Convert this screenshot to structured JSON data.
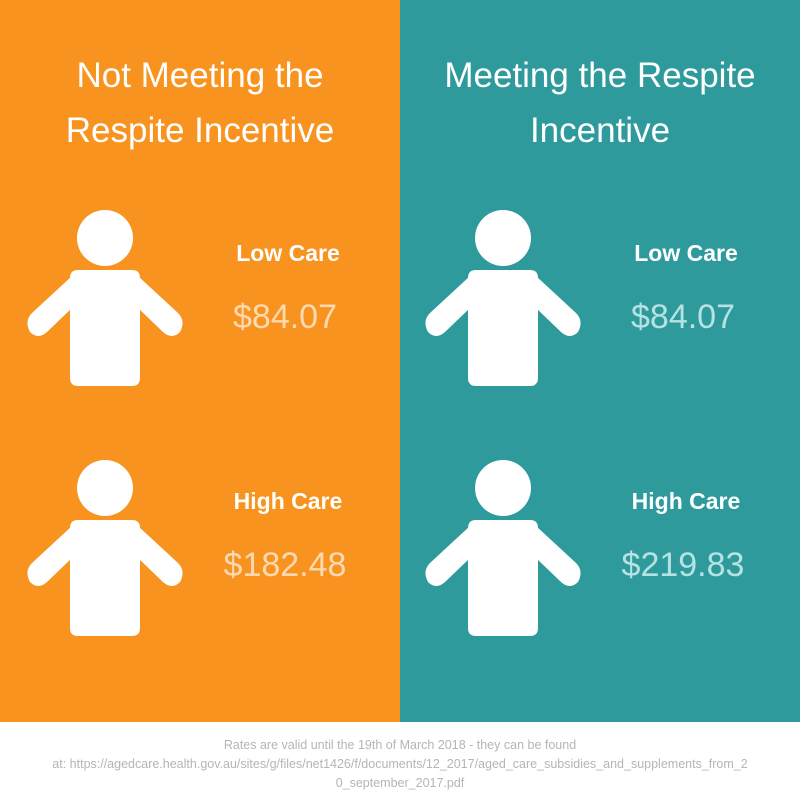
{
  "colors": {
    "left_panel": "#F7931E",
    "right_panel": "#2E9A9C",
    "text": "#FFFFFF"
  },
  "icons": {
    "person": "person-icon"
  },
  "left": {
    "title_line1": "Not Meeting the",
    "title_line2": "Respite Incentive",
    "low_care_label": "Low Care",
    "low_care_price": "$84.07",
    "high_care_label": "High Care",
    "high_care_price": "$182.48"
  },
  "right": {
    "title_line1": "Meeting the Respite",
    "title_line2": "Incentive",
    "low_care_label": "Low Care",
    "low_care_price": "$84.07",
    "high_care_label": "High Care",
    "high_care_price": "$219.83"
  },
  "footer": {
    "line1": "Rates are valid until the 19th of March 2018 - they can be found",
    "line2": "at: https://agedcare.health.gov.au/sites/g/files/net1426/f/documents/12_2017/aged_care_subsidies_and_supplements_from_2",
    "line3": "0_september_2017.pdf"
  }
}
